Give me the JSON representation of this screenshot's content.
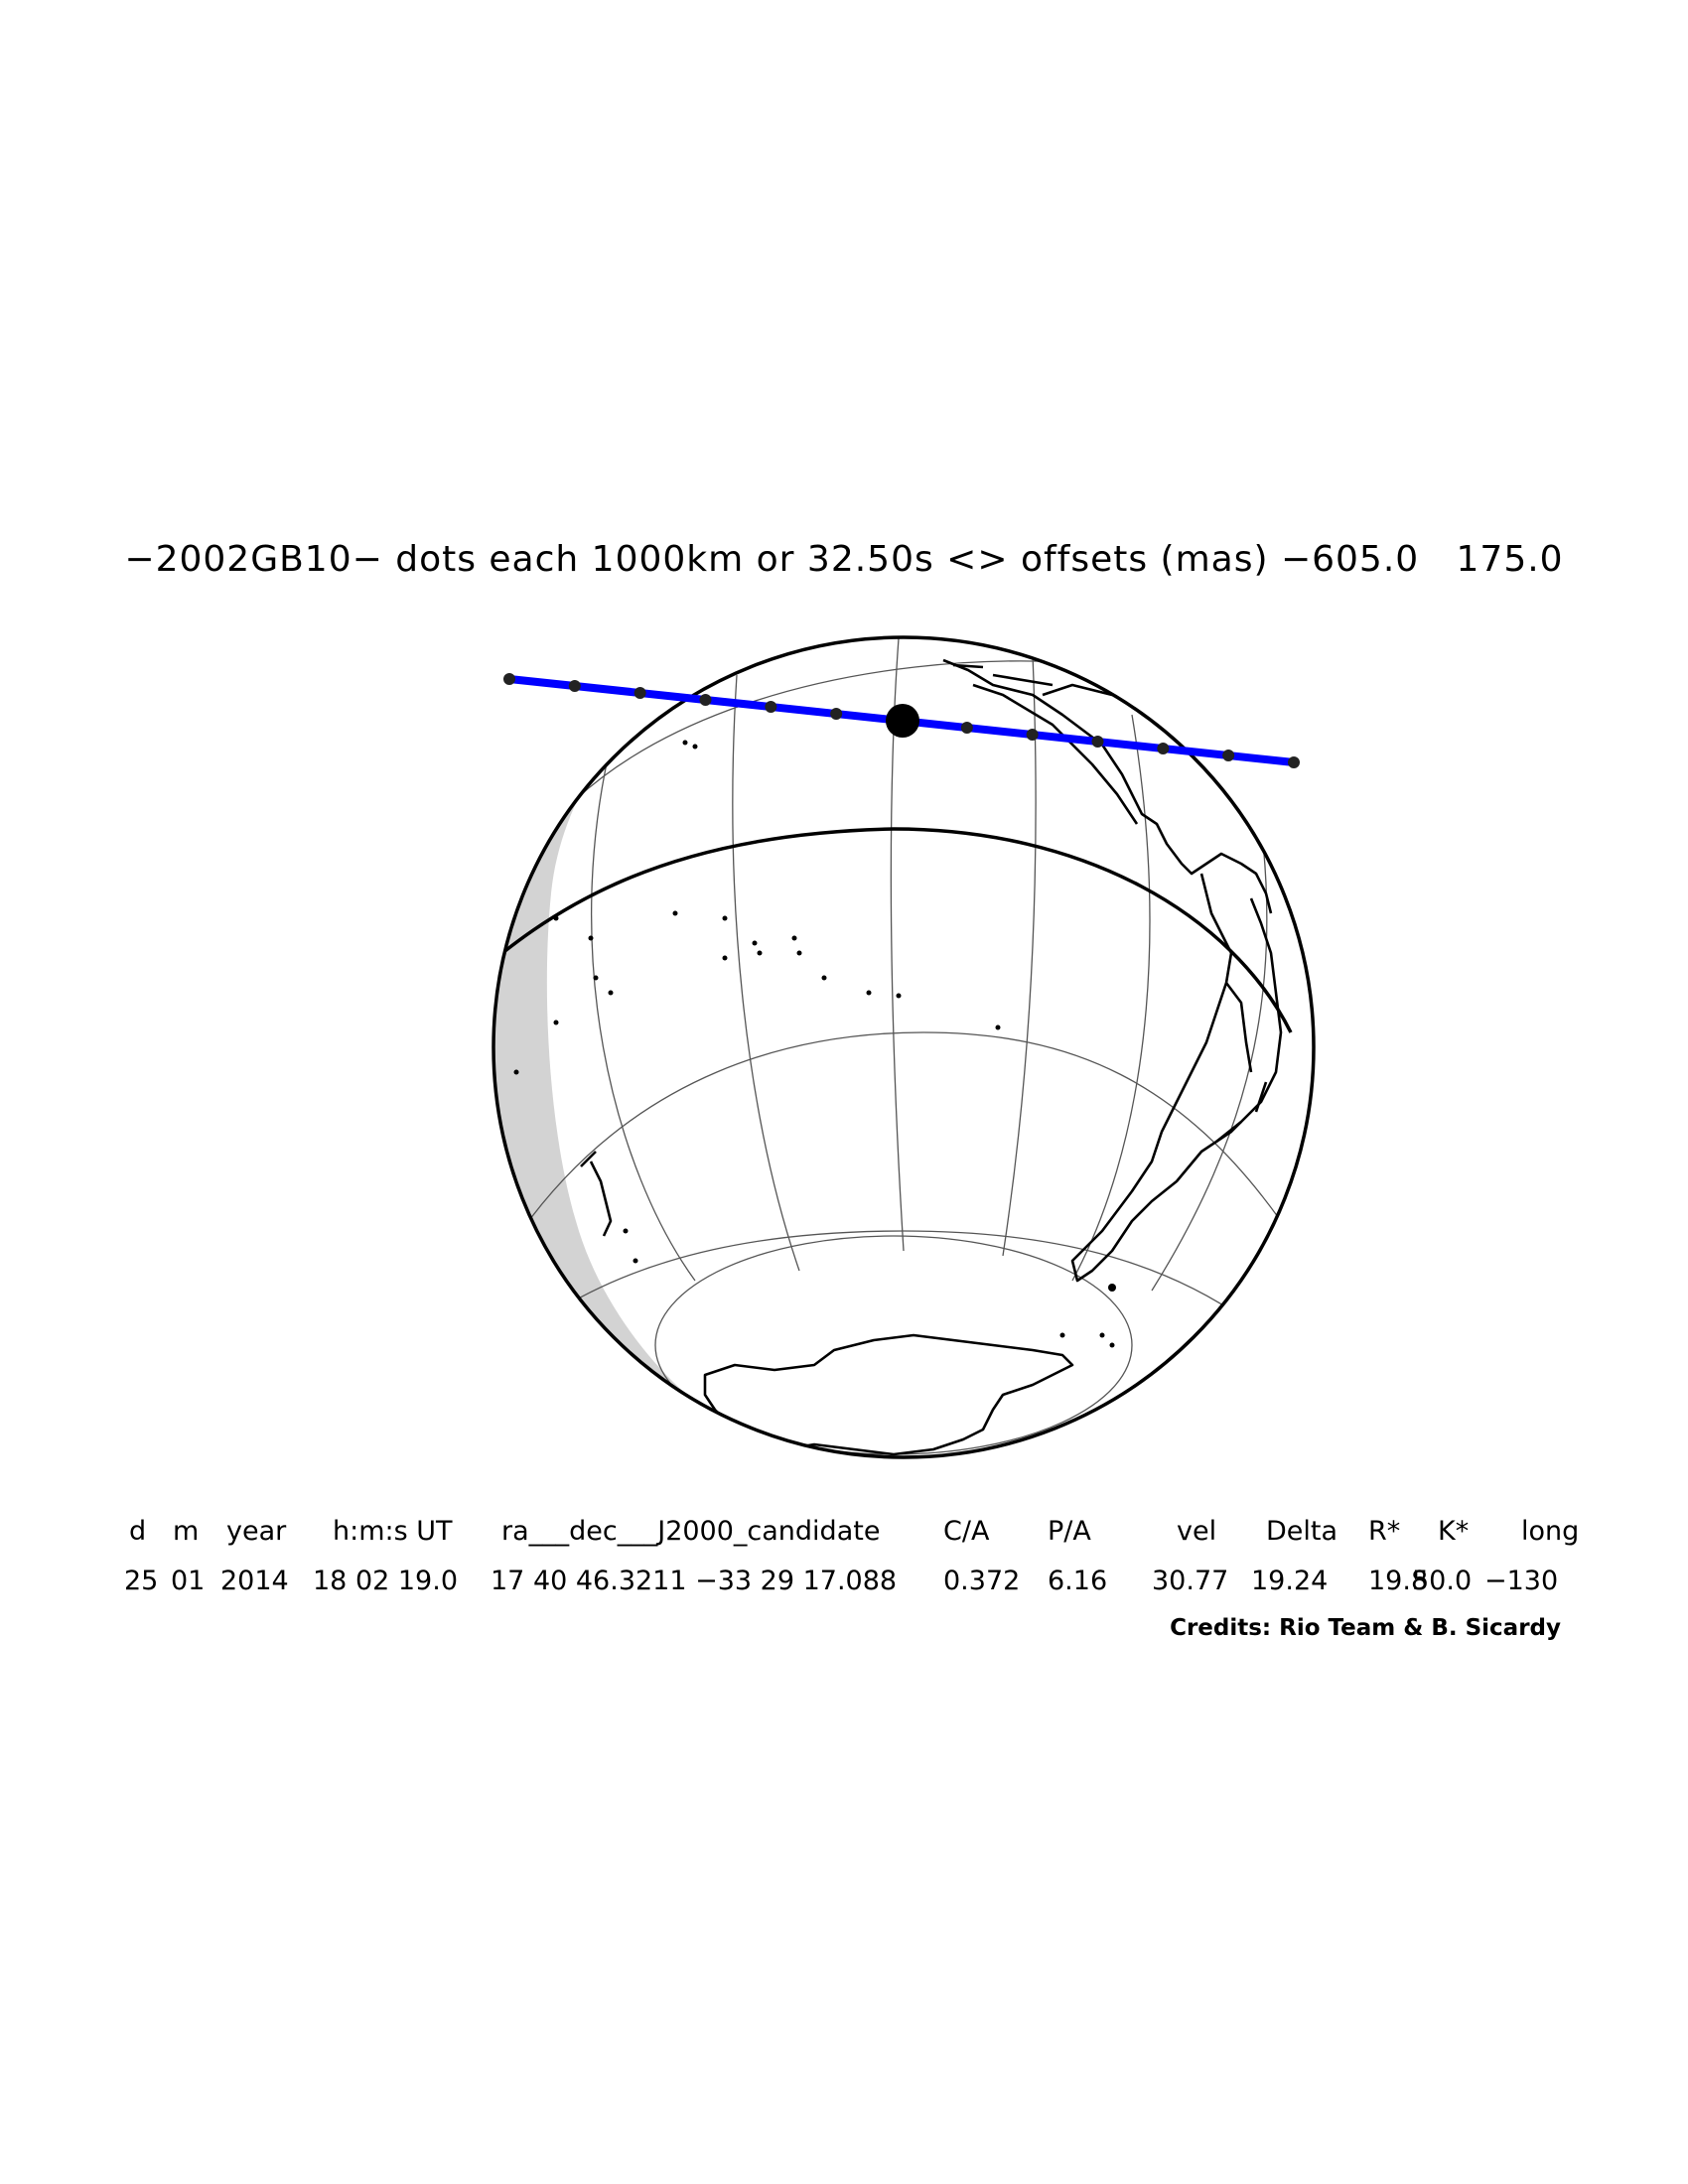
{
  "title": "−2002GB10− dots each 1000km or 32.50s <> offsets (mas) −605.0   175.0",
  "table": {
    "headers": [
      "d",
      "m",
      "year",
      "h:m:s UT",
      "ra___dec___J2000_candidate",
      "C/A",
      "P/A",
      "vel",
      "Delta",
      "R*",
      "K*",
      "long"
    ],
    "values": [
      "25",
      "01",
      "2014",
      "18 02 19.0",
      "17 40 46.3211 −33 29 17.088",
      "0.372",
      "6.16",
      "30.77",
      "19.24",
      "19.8",
      "50.0",
      "−130"
    ]
  },
  "credits": "Credits: Rio Team & B. Sicardy",
  "colors": {
    "track": "#0000ff",
    "night": "#a9a9a9",
    "twilight": "#d3d3d3",
    "outline": "#000000"
  },
  "map": {
    "projection": "orthographic",
    "track_dots": 13,
    "closest_approach_marker": "large-black-dot"
  }
}
